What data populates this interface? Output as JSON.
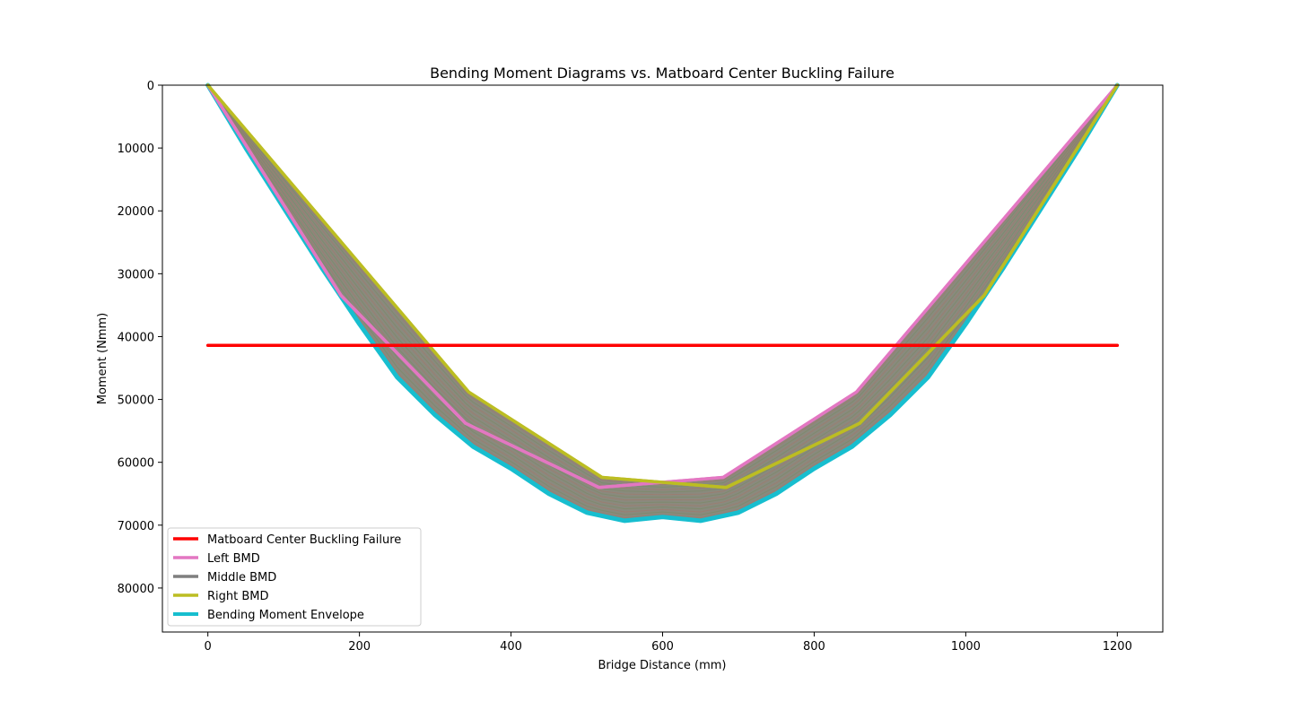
{
  "chart_data": {
    "type": "line",
    "title": "Bending Moment Diagrams vs. Matboard Center Buckling Failure",
    "xlabel": "Bridge Distance (mm)",
    "ylabel": "Moment (Nmm)",
    "xlim": [
      -60,
      1260
    ],
    "ylim": [
      87000,
      0
    ],
    "y_inverted": true,
    "x_ticks": [
      0,
      200,
      400,
      600,
      800,
      1000,
      1200
    ],
    "y_ticks": [
      0,
      10000,
      20000,
      30000,
      40000,
      50000,
      60000,
      70000,
      80000
    ],
    "grid": false,
    "legend_position": "lower-left",
    "series": [
      {
        "name": "Matboard Center Buckling Failure",
        "color": "#ff0000",
        "x": [
          0,
          1200
        ],
        "y": [
          41400,
          41400
        ]
      },
      {
        "name": "Left BMD",
        "color": "#e377c2",
        "x": [
          0,
          176,
          340,
          516,
          680,
          856,
          1200
        ],
        "y": [
          0,
          33500,
          53800,
          64000,
          62400,
          48800,
          0
        ]
      },
      {
        "name": "Middle BMD",
        "color": "#7f7f7f",
        "x": [
          0,
          120,
          260,
          430,
          600,
          770,
          940,
          1080,
          1200
        ],
        "y": [
          0,
          18500,
          40500,
          59500,
          66500,
          59500,
          40500,
          18500,
          0
        ]
      },
      {
        "name": "Right BMD",
        "color": "#bcbd22",
        "x": [
          0,
          344,
          520,
          684,
          860,
          1024,
          1200
        ],
        "y": [
          0,
          48800,
          62400,
          64000,
          53800,
          33500,
          0
        ]
      },
      {
        "name": "Bending Moment Envelope",
        "color": "#17becf",
        "x": [
          0,
          50,
          100,
          150,
          200,
          250,
          300,
          350,
          400,
          450,
          500,
          550,
          600,
          650,
          700,
          750,
          800,
          850,
          900,
          950,
          1000,
          1050,
          1100,
          1150,
          1200
        ],
        "y": [
          0,
          10000,
          19500,
          29000,
          38000,
          46500,
          52500,
          57500,
          61000,
          65000,
          68000,
          69300,
          68700,
          69300,
          68000,
          65000,
          61000,
          57500,
          52500,
          46500,
          38000,
          29000,
          19500,
          10000,
          0
        ]
      }
    ]
  }
}
